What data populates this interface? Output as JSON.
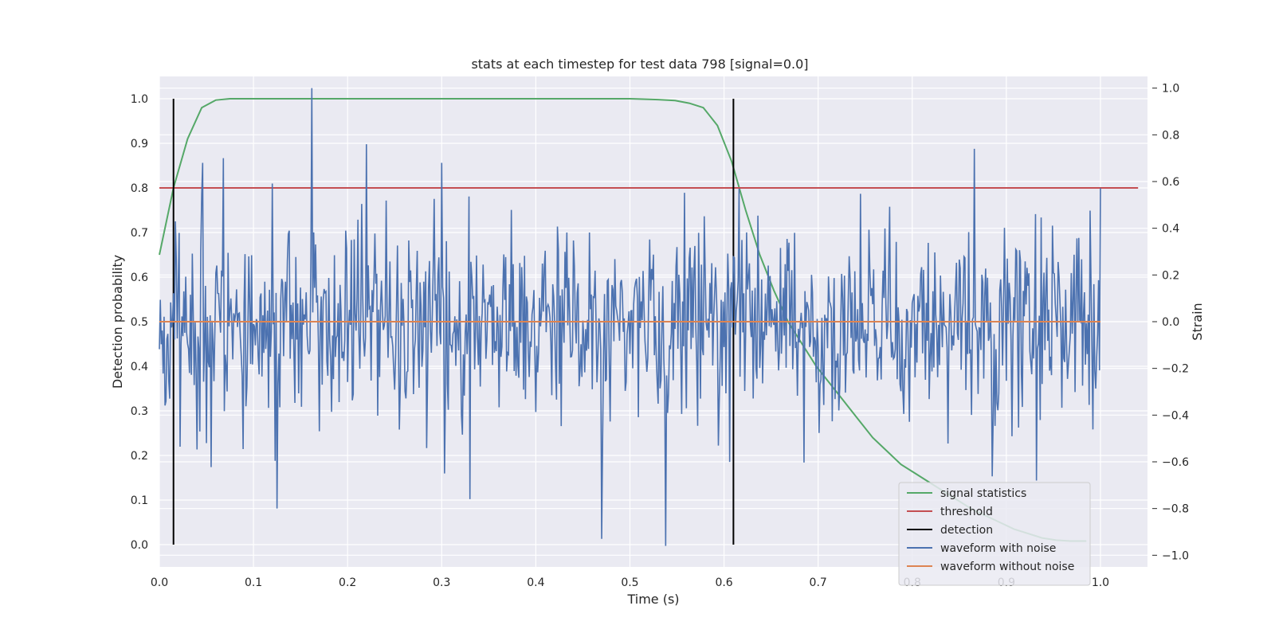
{
  "chart_data": {
    "type": "line",
    "title": "stats at each timestep for test data 798 [signal=0.0]",
    "xlabel": "Time (s)",
    "ylabel": "Detection probability",
    "y2label": "Strain",
    "xlim": [
      0.0,
      1.05
    ],
    "ylim": [
      -0.05,
      1.05
    ],
    "y2lim": [
      -1.05,
      1.05
    ],
    "xticks": [
      "0.0",
      "0.1",
      "0.2",
      "0.3",
      "0.4",
      "0.5",
      "0.6",
      "0.7",
      "0.8",
      "0.9",
      "1.0"
    ],
    "yticks": [
      "0.0",
      "0.1",
      "0.2",
      "0.3",
      "0.4",
      "0.5",
      "0.6",
      "0.7",
      "0.8",
      "0.9",
      "1.0"
    ],
    "y2ticks": [
      "−1.0",
      "−0.8",
      "−0.6",
      "−0.4",
      "−0.2",
      "0.0",
      "0.2",
      "0.4",
      "0.6",
      "0.8",
      "1.0"
    ],
    "grid": true,
    "legend_position": "lower-right",
    "series": [
      {
        "name": "signal statistics",
        "color": "#55a868",
        "axis": "left",
        "x": [
          0.0,
          0.015,
          0.03,
          0.045,
          0.06,
          0.075,
          0.1,
          0.2,
          0.3,
          0.4,
          0.5,
          0.53,
          0.548,
          0.563,
          0.578,
          0.593,
          0.608,
          0.623,
          0.638,
          0.653,
          0.668,
          0.683,
          0.698,
          0.713,
          0.728,
          0.743,
          0.758,
          0.773,
          0.788,
          0.803,
          0.818,
          0.833,
          0.848,
          0.863,
          0.878,
          0.893,
          0.908,
          0.923,
          0.938,
          0.953,
          0.968,
          0.985
        ],
        "y": [
          0.65,
          0.8,
          0.91,
          0.98,
          0.997,
          1.0,
          1.0,
          1.0,
          1.0,
          1.0,
          1.0,
          0.998,
          0.996,
          0.99,
          0.98,
          0.94,
          0.86,
          0.75,
          0.65,
          0.57,
          0.5,
          0.45,
          0.4,
          0.36,
          0.32,
          0.28,
          0.24,
          0.21,
          0.18,
          0.16,
          0.14,
          0.12,
          0.1,
          0.08,
          0.065,
          0.05,
          0.035,
          0.025,
          0.015,
          0.01,
          0.008,
          0.008
        ]
      },
      {
        "name": "threshold",
        "color": "#c44e52",
        "axis": "left",
        "x": [
          0.0,
          1.04
        ],
        "y": [
          0.8,
          0.8
        ]
      },
      {
        "name": "detection",
        "color": "#000000",
        "axis": "left",
        "type": "vlines",
        "x": [
          0.015,
          0.61
        ],
        "y": [
          0.0,
          1.0
        ]
      },
      {
        "name": "waveform with noise",
        "color": "#4c72b0",
        "axis": "right",
        "x_start": 0.0,
        "x_end": 1.0,
        "seed": 798,
        "n": 1000,
        "rms": 0.2,
        "extremes": [
          [
            0.162,
            1.0
          ],
          [
            0.538,
            -0.96
          ],
          [
            0.125,
            -0.8
          ],
          [
            0.47,
            -0.93
          ],
          [
            0.33,
            -0.76
          ],
          [
            0.303,
            -0.65
          ],
          [
            0.866,
            0.74
          ],
          [
            0.932,
            -0.68
          ],
          [
            0.22,
            0.76
          ],
          [
            0.068,
            0.7
          ],
          [
            0.046,
            0.68
          ],
          [
            0.3,
            0.68
          ]
        ]
      },
      {
        "name": "waveform without noise",
        "color": "#dd8452",
        "axis": "right",
        "x": [
          0.0,
          1.0
        ],
        "y": [
          0.0,
          0.0
        ]
      }
    ]
  }
}
